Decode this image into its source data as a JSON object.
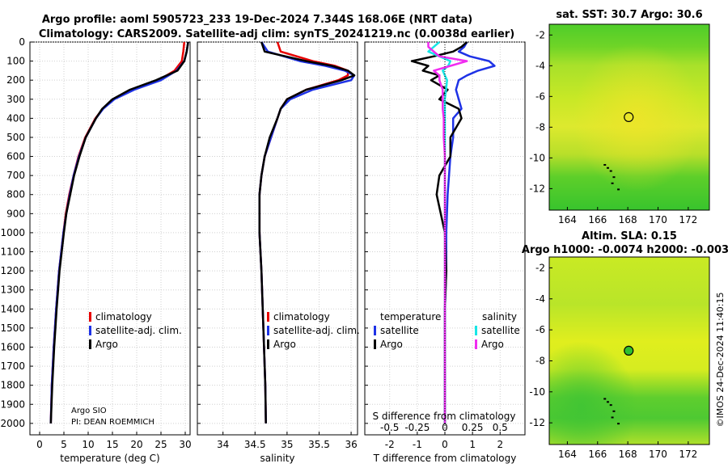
{
  "chart_data": {
    "type": "line",
    "title_line1": "Argo profile: aoml 5905723_233 19-Dec-2024 7.344S 168.06E (NRT data)",
    "title_line2": "Climatology: CARS2009. Satellite-adj clim: synTS_20241219.nc (0.0038d earlier)",
    "depth_ticks": [
      0,
      100,
      200,
      300,
      400,
      500,
      600,
      700,
      800,
      900,
      1000,
      1100,
      1200,
      1300,
      1400,
      1500,
      1600,
      1700,
      1800,
      1900,
      2000
    ],
    "panels": {
      "temperature": {
        "xlabel": "temperature (deg C)",
        "xlim": [
          -2,
          31
        ],
        "xticks": [
          0,
          5,
          10,
          15,
          20,
          25,
          30
        ],
        "legend": [
          "climatology",
          "satellite-adj. clim.",
          "Argo"
        ],
        "credit1": "Argo SIO",
        "credit2": "PI: DEAN ROEMMICH",
        "depth": [
          0,
          50,
          100,
          150,
          200,
          250,
          300,
          350,
          400,
          500,
          600,
          700,
          800,
          900,
          1000,
          1200,
          1400,
          1600,
          1800,
          2000
        ],
        "series": [
          {
            "name": "climatology",
            "color": "#e80000",
            "values": [
              29.8,
              29.6,
              29.3,
              27.8,
              24.5,
              19.0,
              15.2,
              13.0,
              11.5,
              9.4,
              8.0,
              7.0,
              6.1,
              5.4,
              4.9,
              4.0,
              3.4,
              2.9,
              2.5,
              2.3
            ]
          },
          {
            "name": "satellite-adj. clim.",
            "color": "#1e32e6",
            "values": [
              30.6,
              30.3,
              29.8,
              28.2,
              25.0,
              19.5,
              15.4,
              13.1,
              11.6,
              9.5,
              8.1,
              7.0,
              6.2,
              5.5,
              4.9,
              4.0,
              3.4,
              2.9,
              2.5,
              2.3
            ]
          },
          {
            "name": "Argo",
            "color": "#000000",
            "values": [
              30.6,
              30.3,
              29.8,
              28.4,
              24.0,
              18.6,
              15.0,
              12.9,
              11.6,
              9.5,
              8.2,
              7.1,
              6.3,
              5.5,
              5.0,
              4.1,
              3.5,
              3.0,
              2.6,
              2.3
            ]
          }
        ]
      },
      "salinity": {
        "xlabel": "salinity",
        "xlim": [
          33.6,
          36.1
        ],
        "xticks": [
          34,
          34.5,
          35,
          35.5,
          36
        ],
        "tick_labels": [
          "34",
          "34.5",
          "35",
          "35.5",
          "36"
        ],
        "legend": [
          "climatology",
          "satellite-adj. clim.",
          "Argo"
        ],
        "depth": [
          0,
          50,
          100,
          125,
          150,
          175,
          200,
          250,
          300,
          350,
          400,
          500,
          600,
          700,
          800,
          1000,
          1200,
          1400,
          1600,
          1800,
          2000
        ],
        "series": [
          {
            "name": "climatology",
            "color": "#e80000",
            "values": [
              34.85,
              34.9,
              35.4,
              35.75,
              35.95,
              35.95,
              35.8,
              35.3,
              35.0,
              34.9,
              34.85,
              34.75,
              34.65,
              34.6,
              34.57,
              34.57,
              34.6,
              34.62,
              34.64,
              34.66,
              34.67
            ]
          },
          {
            "name": "satellite-adj. clim.",
            "color": "#1e32e6",
            "values": [
              34.6,
              34.7,
              35.2,
              35.6,
              35.9,
              36.05,
              36.0,
              35.4,
              35.05,
              34.9,
              34.85,
              34.75,
              34.65,
              34.6,
              34.57,
              34.57,
              34.6,
              34.62,
              34.64,
              34.66,
              34.67
            ]
          },
          {
            "name": "Argo",
            "color": "#000000",
            "values": [
              34.6,
              34.65,
              35.3,
              35.7,
              35.95,
              36.05,
              35.85,
              35.3,
              35.0,
              34.9,
              34.85,
              34.73,
              34.65,
              34.6,
              34.57,
              34.57,
              34.6,
              34.62,
              34.64,
              34.66,
              34.67
            ]
          }
        ]
      },
      "difference": {
        "xlabel_bottom": "T difference from climatology",
        "xlabel_top": "S difference from climatology",
        "xlim": [
          -2.9,
          2.9
        ],
        "t_ticks": [
          -2,
          -1,
          0,
          1,
          2
        ],
        "t_tick_labels": [
          "-2",
          "-1",
          "0",
          "1",
          "2"
        ],
        "s_ticks": [
          -0.5,
          -0.25,
          0,
          0.25,
          0.5
        ],
        "s_tick_labels": [
          "-0.5",
          "-0.25",
          "0",
          "0.25",
          "0.5"
        ],
        "s_scale": 4,
        "legend_t_title": "temperature",
        "legend_s_title": "salinity",
        "legend_t": [
          "satellite",
          "Argo"
        ],
        "legend_s": [
          "satellite",
          "Argo"
        ],
        "depth": [
          0,
          25,
          50,
          75,
          100,
          125,
          150,
          175,
          200,
          250,
          300,
          350,
          400,
          500,
          600,
          700,
          800,
          1000,
          1200,
          1400,
          1600,
          1800,
          2000
        ],
        "series": [
          {
            "name": "T satellite",
            "color": "#1e32e6",
            "values": [
              0.8,
              0.7,
              0.5,
              0.9,
              1.6,
              1.8,
              1.2,
              0.8,
              0.5,
              0.4,
              0.5,
              0.6,
              0.3,
              0.3,
              0.2,
              0.15,
              0.1,
              0.05,
              0.05,
              0.0,
              0.0,
              0.0,
              0.0
            ]
          },
          {
            "name": "T Argo",
            "color": "#000000",
            "values": [
              0.8,
              0.6,
              0.3,
              -0.4,
              -1.2,
              -0.6,
              -0.8,
              -0.2,
              -0.5,
              0.1,
              -0.2,
              0.5,
              0.6,
              0.2,
              0.2,
              -0.2,
              -0.3,
              0.0,
              0.05,
              0.0,
              0.0,
              0.0,
              0.0
            ]
          },
          {
            "name": "S satellite",
            "color": "#18e6e6",
            "values": [
              -0.05,
              -0.1,
              -0.15,
              -0.05,
              0.05,
              0.03,
              -0.02,
              0.0,
              0.02,
              0.01,
              0.0,
              0.0,
              0.0,
              0.0,
              0.0,
              0.0,
              0.0,
              0.0,
              0.0,
              0.0,
              0.0,
              0.0,
              0.0
            ]
          },
          {
            "name": "S Argo",
            "color": "#f02cf0",
            "values": [
              -0.15,
              -0.15,
              -0.1,
              -0.05,
              0.2,
              0.05,
              -0.1,
              -0.05,
              -0.05,
              -0.02,
              -0.02,
              -0.02,
              -0.01,
              -0.01,
              0.0,
              0.0,
              0.0,
              0.0,
              0.0,
              0.0,
              0.0,
              0.0,
              0.0
            ]
          }
        ]
      }
    },
    "maps": [
      {
        "title1": "sat. SST: 30.7 Argo: 30.6",
        "title2": "",
        "xticks": [
          164,
          166,
          168,
          170,
          172
        ],
        "yticks": [
          -2,
          -4,
          -6,
          -8,
          -10,
          -12
        ],
        "float_lon": 168.06,
        "float_lat": -7.344,
        "marker_fill": "none"
      },
      {
        "title1": "Altim. SLA: 0.15",
        "title2": "Argo h1000: -0.0074 h2000: -0.003",
        "xticks": [
          164,
          166,
          168,
          170,
          172
        ],
        "yticks": [
          -2,
          -4,
          -6,
          -8,
          -10,
          -12
        ],
        "float_lon": 168.06,
        "float_lat": -7.344,
        "marker_fill": "#2fbf2f"
      }
    ],
    "footer": "©IMOS 24-Dec-2024 11:40:15"
  }
}
